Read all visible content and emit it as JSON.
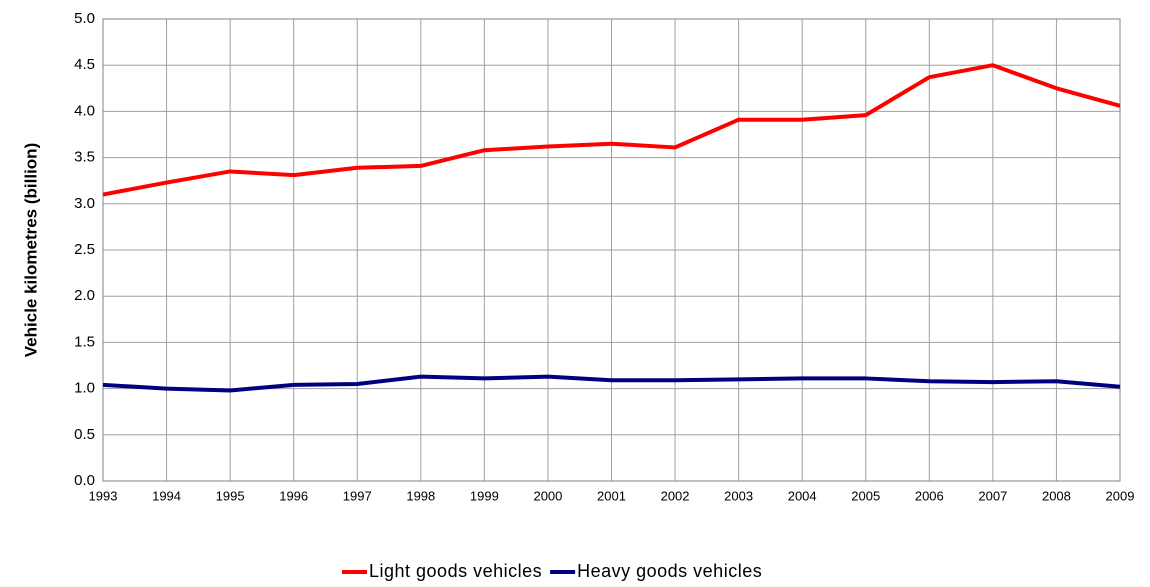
{
  "chart_data": {
    "type": "line",
    "y_label": "Vehicle kilometres (billion)",
    "x": [
      1993,
      1994,
      1995,
      1996,
      1997,
      1998,
      1999,
      2000,
      2001,
      2002,
      2003,
      2004,
      2005,
      2006,
      2007,
      2008,
      2009
    ],
    "series": [
      {
        "name": "Light goods vehicles",
        "color": "#ff0000",
        "values": [
          3.1,
          3.23,
          3.35,
          3.31,
          3.39,
          3.41,
          3.58,
          3.62,
          3.65,
          3.61,
          3.91,
          3.91,
          3.96,
          4.37,
          4.5,
          4.25,
          4.06
        ]
      },
      {
        "name": "Heavy goods vehicles",
        "color": "#000080",
        "values": [
          1.04,
          1.0,
          0.98,
          1.04,
          1.05,
          1.13,
          1.11,
          1.13,
          1.09,
          1.09,
          1.1,
          1.11,
          1.11,
          1.08,
          1.07,
          1.08,
          1.02
        ]
      }
    ],
    "xlim": [
      1993,
      2009
    ],
    "xticks": [
      1993,
      1994,
      1995,
      1996,
      1997,
      1998,
      1999,
      2000,
      2001,
      2002,
      2003,
      2004,
      2005,
      2006,
      2007,
      2008,
      2009
    ],
    "ylim": [
      0,
      5
    ],
    "yticks": [
      {
        "value": 0,
        "label": "0.0"
      },
      0.5,
      {
        "value": 1,
        "label": "1.0"
      },
      1.5,
      {
        "value": 2,
        "label": "2.0"
      },
      2.5,
      {
        "value": 3,
        "label": "3.0"
      },
      3.5,
      {
        "value": 4,
        "label": "4.0"
      },
      4.5,
      {
        "value": 5,
        "label": "5.0"
      }
    ],
    "grid": true,
    "legend": "bottom"
  }
}
